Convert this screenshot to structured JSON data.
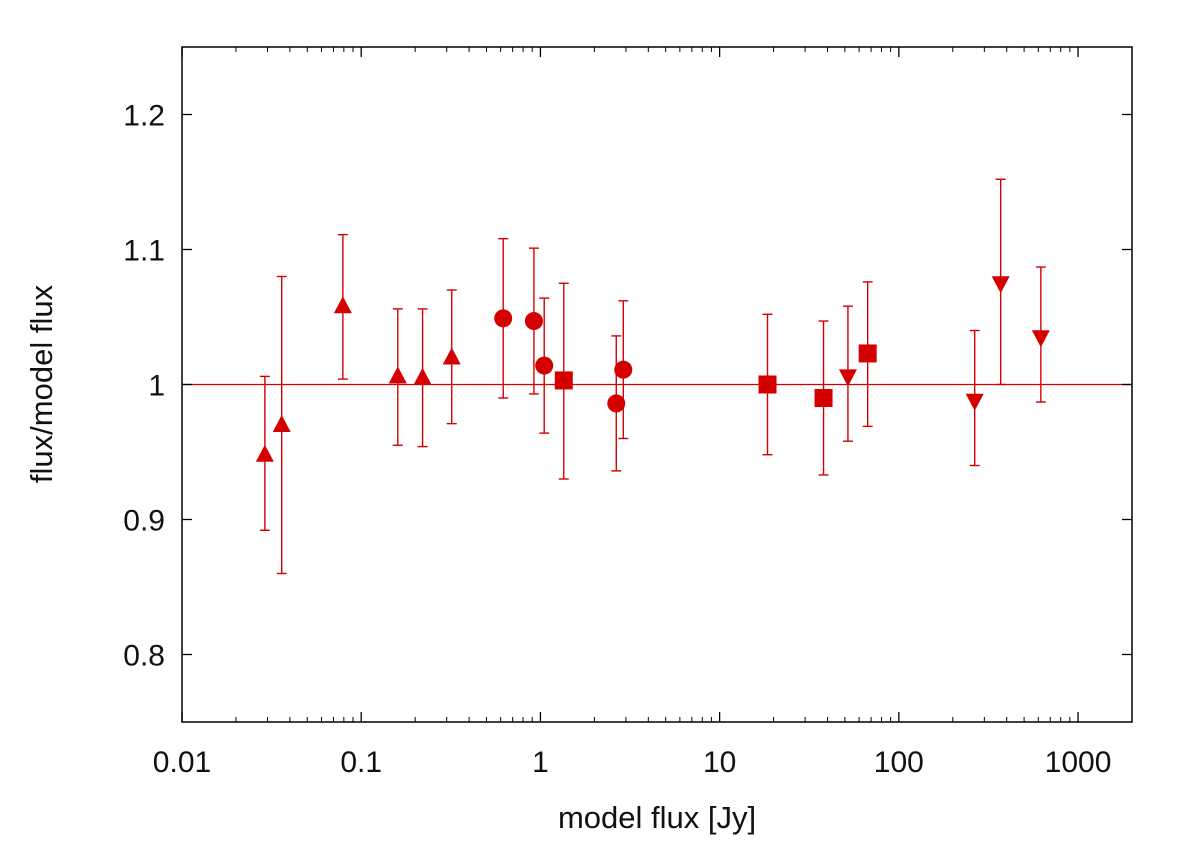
{
  "chart_data": {
    "type": "scatter",
    "title": "",
    "xlabel": "model flux [Jy]",
    "ylabel": "flux/model flux",
    "xscale": "log",
    "xlim": [
      0.01,
      2000
    ],
    "ylim": [
      0.75,
      1.25
    ],
    "xticks": [
      {
        "value": 0.01,
        "label": "0.01"
      },
      {
        "value": 0.1,
        "label": "0.1"
      },
      {
        "value": 1,
        "label": "1"
      },
      {
        "value": 10,
        "label": "10"
      },
      {
        "value": 100,
        "label": "100"
      },
      {
        "value": 1000,
        "label": "1000"
      }
    ],
    "yticks": [
      {
        "value": 0.8,
        "label": "0.8"
      },
      {
        "value": 0.9,
        "label": "0.9"
      },
      {
        "value": 1.0,
        "label": "1"
      },
      {
        "value": 1.1,
        "label": "1.1"
      },
      {
        "value": 1.2,
        "label": "1.2"
      }
    ],
    "reference_line": 1.0,
    "grid": false,
    "color": "#d40000",
    "series": [
      {
        "name": "triangle-up",
        "marker": "triangle-up",
        "points": [
          {
            "x": 0.029,
            "y": 0.948,
            "err_low": 0.892,
            "err_high": 1.006
          },
          {
            "x": 0.036,
            "y": 0.97,
            "err_low": 0.86,
            "err_high": 1.08
          },
          {
            "x": 0.079,
            "y": 1.058,
            "err_low": 1.004,
            "err_high": 1.111
          },
          {
            "x": 0.16,
            "y": 1.006,
            "err_low": 0.955,
            "err_high": 1.056
          },
          {
            "x": 0.22,
            "y": 1.005,
            "err_low": 0.954,
            "err_high": 1.056
          },
          {
            "x": 0.32,
            "y": 1.02,
            "err_low": 0.971,
            "err_high": 1.07
          }
        ]
      },
      {
        "name": "circle",
        "marker": "circle",
        "points": [
          {
            "x": 0.62,
            "y": 1.049,
            "err_low": 0.99,
            "err_high": 1.108
          },
          {
            "x": 0.92,
            "y": 1.047,
            "err_low": 0.993,
            "err_high": 1.101
          },
          {
            "x": 1.05,
            "y": 1.014,
            "err_low": 0.964,
            "err_high": 1.064
          },
          {
            "x": 2.65,
            "y": 0.986,
            "err_low": 0.936,
            "err_high": 1.036
          },
          {
            "x": 2.9,
            "y": 1.011,
            "err_low": 0.96,
            "err_high": 1.062
          }
        ]
      },
      {
        "name": "square",
        "marker": "square",
        "points": [
          {
            "x": 1.35,
            "y": 1.003,
            "err_low": 0.93,
            "err_high": 1.075
          },
          {
            "x": 18.5,
            "y": 1.0,
            "err_low": 0.948,
            "err_high": 1.052
          },
          {
            "x": 38.0,
            "y": 0.99,
            "err_low": 0.933,
            "err_high": 1.047
          },
          {
            "x": 67.0,
            "y": 1.023,
            "err_low": 0.969,
            "err_high": 1.076
          }
        ]
      },
      {
        "name": "triangle-down",
        "marker": "triangle-down",
        "points": [
          {
            "x": 52.0,
            "y": 1.006,
            "err_low": 0.958,
            "err_high": 1.058
          },
          {
            "x": 265.0,
            "y": 0.988,
            "err_low": 0.94,
            "err_high": 1.04
          },
          {
            "x": 370.0,
            "y": 1.075,
            "err_low": 1.0,
            "err_high": 1.152
          },
          {
            "x": 620.0,
            "y": 1.035,
            "err_low": 0.987,
            "err_high": 1.087
          }
        ]
      }
    ]
  }
}
